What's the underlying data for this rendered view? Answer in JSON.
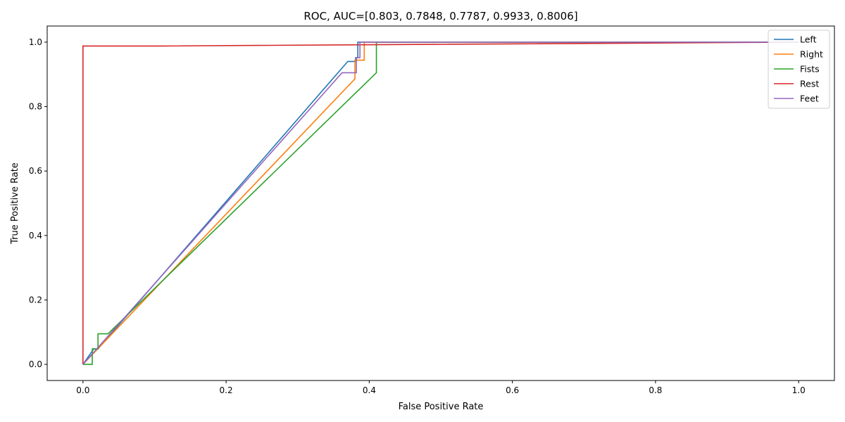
{
  "chart_data": {
    "type": "line",
    "title": "ROC, AUC=[0.803, 0.7848, 0.7787, 0.9933, 0.8006]",
    "xlabel": "False Positive Rate",
    "ylabel": "True Positive Rate",
    "xlim": [
      -0.05,
      1.05
    ],
    "ylim": [
      -0.05,
      1.05
    ],
    "xticks": [
      0.0,
      0.2,
      0.4,
      0.6,
      0.8,
      1.0
    ],
    "xtick_labels": [
      "0.0",
      "0.2",
      "0.4",
      "0.6",
      "0.8",
      "1.0"
    ],
    "yticks": [
      0.0,
      0.2,
      0.4,
      0.6,
      0.8,
      1.0
    ],
    "ytick_labels": [
      "0.0",
      "0.2",
      "0.4",
      "0.6",
      "0.8",
      "1.0"
    ],
    "grid": false,
    "legend_position": "top-right",
    "series": [
      {
        "name": "Left",
        "color": "#1f77b4",
        "points": [
          [
            0,
            0
          ],
          [
            0.015,
            0.048
          ],
          [
            0.021,
            0.048
          ],
          [
            0.37,
            0.94
          ],
          [
            0.381,
            0.94
          ],
          [
            0.381,
            0.952
          ],
          [
            0.384,
            0.952
          ],
          [
            0.384,
            1.0
          ],
          [
            1.0,
            1.0
          ]
        ]
      },
      {
        "name": "Right",
        "color": "#ff7f0e",
        "points": [
          [
            0,
            0
          ],
          [
            0.38,
            0.886
          ],
          [
            0.38,
            0.944
          ],
          [
            0.393,
            0.944
          ],
          [
            0.393,
            1.0
          ],
          [
            1.0,
            1.0
          ]
        ]
      },
      {
        "name": "Fists",
        "color": "#2ca02c",
        "points": [
          [
            0,
            0
          ],
          [
            0.013,
            0
          ],
          [
            0.013,
            0.048
          ],
          [
            0.021,
            0.048
          ],
          [
            0.021,
            0.095
          ],
          [
            0.035,
            0.095
          ],
          [
            0.41,
            0.905
          ],
          [
            0.41,
            1.0
          ],
          [
            1.0,
            1.0
          ]
        ]
      },
      {
        "name": "Rest",
        "color": "#d62728",
        "points": [
          [
            0,
            0
          ],
          [
            0,
            0.988
          ],
          [
            0.11,
            0.988
          ],
          [
            1.0,
            1.0
          ]
        ]
      },
      {
        "name": "Feet",
        "color": "#9467bd",
        "points": [
          [
            0,
            0
          ],
          [
            0.362,
            0.905
          ],
          [
            0.382,
            0.905
          ],
          [
            0.382,
            0.952
          ],
          [
            0.387,
            0.952
          ],
          [
            0.387,
            1.0
          ],
          [
            1.0,
            1.0
          ]
        ]
      }
    ]
  }
}
